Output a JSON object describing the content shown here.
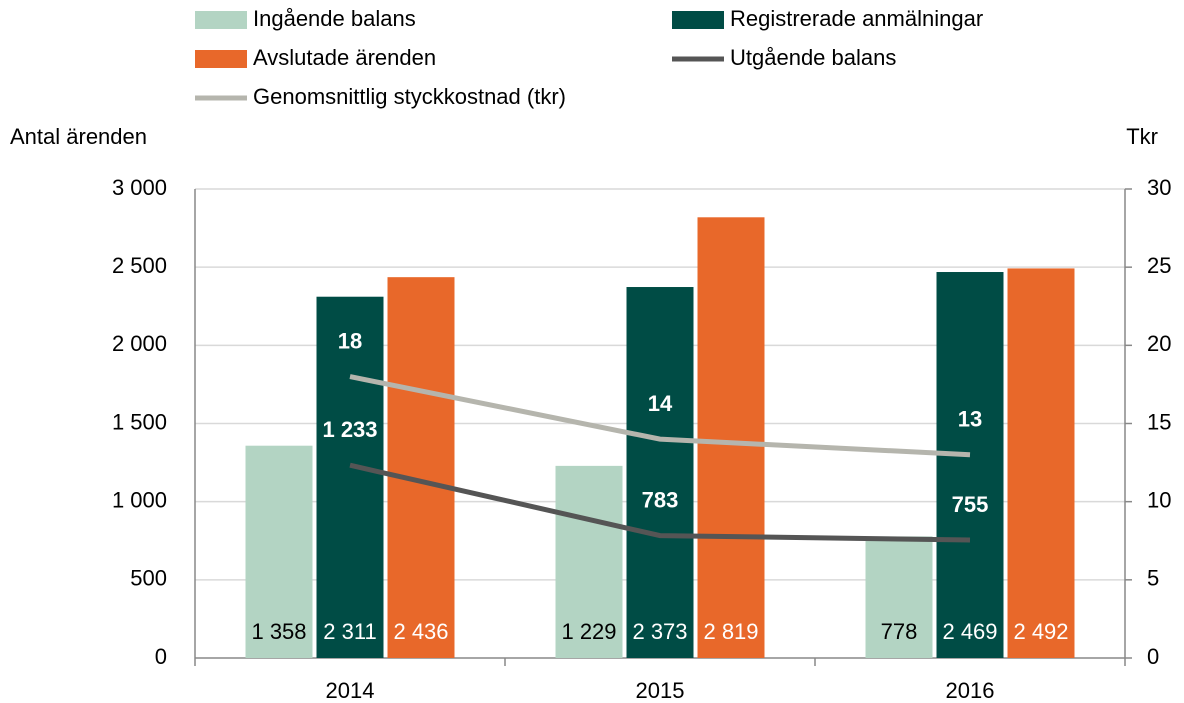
{
  "chart_data": {
    "type": "bar",
    "y_label": "Antal ärenden",
    "y2_label": "Tkr",
    "categories": [
      "2014",
      "2015",
      "2016"
    ],
    "series": [
      {
        "name": "Ingående balans",
        "type": "bar",
        "color": "#b3d4c3",
        "label_color": "#000000",
        "values": [
          1358,
          1229,
          778
        ],
        "value_labels": [
          "1 358",
          "1 229",
          "778"
        ]
      },
      {
        "name": "Registrerade anmälningar",
        "type": "bar",
        "color": "#004c45",
        "label_color": "#ffffff",
        "values": [
          2311,
          2373,
          2469
        ],
        "value_labels": [
          "2 311",
          "2 373",
          "2 469"
        ]
      },
      {
        "name": "Avslutade ärenden",
        "type": "bar",
        "color": "#e8682a",
        "label_color": "#ffffff",
        "values": [
          2436,
          2819,
          2492
        ],
        "value_labels": [
          "2 436",
          "2 819",
          "2 492"
        ]
      },
      {
        "name": "Utgående balans",
        "type": "line",
        "color": "#555555",
        "label_color": "#ffffff",
        "values": [
          1233,
          783,
          755
        ],
        "value_labels": [
          "1 233",
          "783",
          "755"
        ]
      },
      {
        "name": "Genomsnittlig styckkostnad (tkr)",
        "type": "line",
        "axis": "y2",
        "color": "#b5b5ad",
        "label_color": "#ffffff",
        "values": [
          18,
          14,
          13
        ]
      }
    ],
    "ylim": [
      0,
      3000
    ],
    "yticks": [
      0,
      500,
      {
        "value": 1000,
        "label": "1 000"
      },
      {
        "value": 1500,
        "label": "1 500"
      },
      {
        "value": 2000,
        "label": "2 000"
      },
      {
        "value": 2500,
        "label": "2 500"
      },
      {
        "value": 3000,
        "label": "3 000"
      }
    ],
    "y2lim": [
      0,
      30
    ],
    "y2ticks": [
      0,
      5,
      10,
      15,
      20,
      25,
      30
    ],
    "grid": true
  }
}
